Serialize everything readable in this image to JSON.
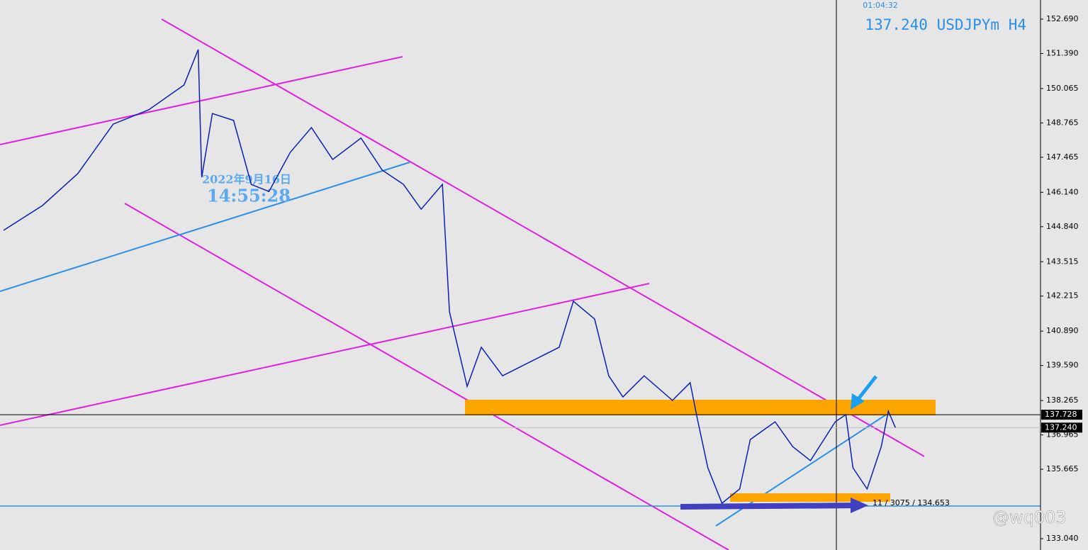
{
  "chart_data": {
    "type": "line",
    "clock": "01:04:32",
    "title": "137.240 USDJPYm H4",
    "date_label": "2022年9月16日",
    "time_label": "14:55:28",
    "crosshair_info": "11 / 3075 / 134.653",
    "watermark": "@wq003",
    "x": [
      1,
      12,
      22,
      32,
      42,
      52,
      56,
      57,
      60,
      66,
      71,
      76,
      82,
      88,
      94,
      102,
      108,
      114,
      119,
      125,
      127,
      132,
      136,
      142,
      150,
      158,
      162,
      168,
      172,
      176,
      182,
      190,
      195,
      197,
      200,
      204,
      209,
      212,
      219,
      224,
      229,
      236,
      239,
      241,
      245,
      249,
      251,
      253
    ],
    "series": [
      {
        "name": "USDJPYm",
        "color": "#0a1fb5",
        "values": [
          144.7,
          145.64,
          146.85,
          148.72,
          149.26,
          150.2,
          151.54,
          146.71,
          149.12,
          148.86,
          146.44,
          146.17,
          147.65,
          148.59,
          147.38,
          148.19,
          146.98,
          146.44,
          145.5,
          146.44,
          141.62,
          138.8,
          140.28,
          139.2,
          139.74,
          140.28,
          142.02,
          141.35,
          139.2,
          138.4,
          139.2,
          138.27,
          138.94,
          137.6,
          135.72,
          134.38,
          134.92,
          136.79,
          137.46,
          136.52,
          135.99,
          137.46,
          137.73,
          135.72,
          134.92,
          136.52,
          137.86,
          137.24
        ]
      }
    ],
    "xlim": [
      0,
      294
    ],
    "ylim": [
      132.611,
      153.414
    ],
    "yticks": [
      {
        "value": 152.69,
        "label": "152.690"
      },
      {
        "value": 151.39,
        "label": "151.390"
      },
      {
        "value": 150.065,
        "label": "150.065"
      },
      {
        "value": 148.765,
        "label": "148.765"
      },
      {
        "value": 147.465,
        "label": "147.465"
      },
      {
        "value": 146.14,
        "label": "146.140"
      },
      {
        "value": 144.84,
        "label": "144.840"
      },
      {
        "value": 143.515,
        "label": "143.515"
      },
      {
        "value": 142.215,
        "label": "142.215"
      },
      {
        "value": 140.89,
        "label": "140.890"
      },
      {
        "value": 139.59,
        "label": "139.590"
      },
      {
        "value": 138.265,
        "label": "138.265"
      },
      {
        "value": 136.965,
        "label": "136.965"
      },
      {
        "value": 135.665,
        "label": "135.665"
      },
      {
        "value": 133.04,
        "label": "133.040"
      }
    ],
    "price_lines": [
      {
        "value": 137.728,
        "label": "137.728",
        "color": "#000000"
      },
      {
        "value": 137.24,
        "label": "137.240",
        "color": "#c0c0c0"
      }
    ]
  }
}
